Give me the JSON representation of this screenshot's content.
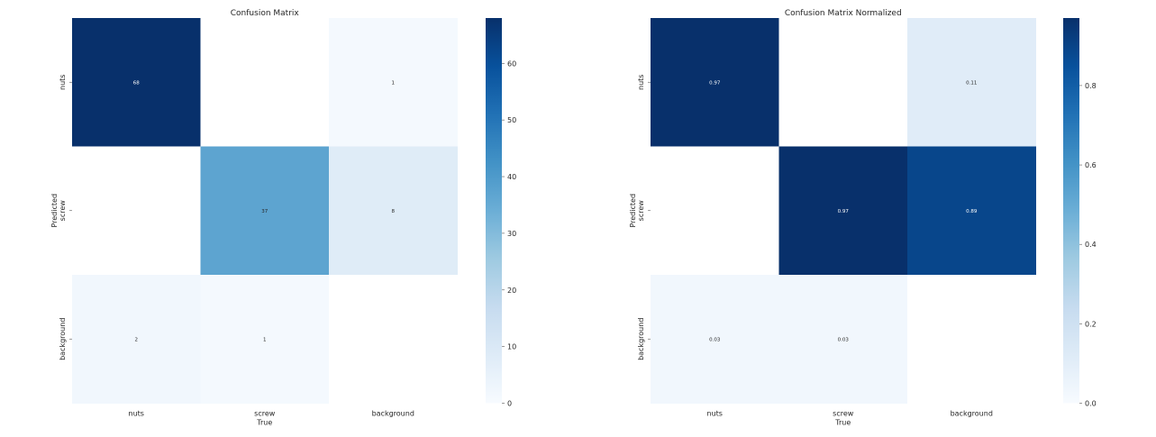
{
  "chart_data": [
    {
      "type": "heatmap",
      "title": "Confusion Matrix",
      "xlabel": "True",
      "ylabel": "Predicted",
      "x_categories": [
        "nuts",
        "screw",
        "background"
      ],
      "y_categories": [
        "nuts",
        "screw",
        "background"
      ],
      "values": [
        [
          68,
          null,
          1
        ],
        [
          null,
          37,
          8
        ],
        [
          2,
          1,
          null
        ]
      ],
      "cell_labels": [
        [
          "68",
          "",
          "1"
        ],
        [
          "",
          "37",
          "8"
        ],
        [
          "2",
          "1",
          ""
        ]
      ],
      "vmin": 0,
      "vmax": 68,
      "colorbar_ticks": [
        0,
        10,
        20,
        30,
        40,
        50,
        60
      ],
      "colorbar_tick_labels": [
        "0",
        "10",
        "20",
        "30",
        "40",
        "50",
        "60"
      ],
      "colormap": "Blues",
      "grid": false
    },
    {
      "type": "heatmap",
      "title": "Confusion Matrix Normalized",
      "xlabel": "True",
      "ylabel": "Predicted",
      "x_categories": [
        "nuts",
        "screw",
        "background"
      ],
      "y_categories": [
        "nuts",
        "screw",
        "background"
      ],
      "values": [
        [
          0.97,
          null,
          0.11
        ],
        [
          null,
          0.97,
          0.89
        ],
        [
          0.03,
          0.03,
          null
        ]
      ],
      "cell_labels": [
        [
          "0.97",
          "",
          "0.11"
        ],
        [
          "",
          "0.97",
          "0.89"
        ],
        [
          "0.03",
          "0.03",
          ""
        ]
      ],
      "vmin": 0,
      "vmax": 0.97,
      "colorbar_ticks": [
        0.0,
        0.2,
        0.4,
        0.6,
        0.8
      ],
      "colorbar_tick_labels": [
        "0.0",
        "0.2",
        "0.4",
        "0.6",
        "0.8"
      ],
      "colormap": "Blues",
      "grid": false
    }
  ]
}
